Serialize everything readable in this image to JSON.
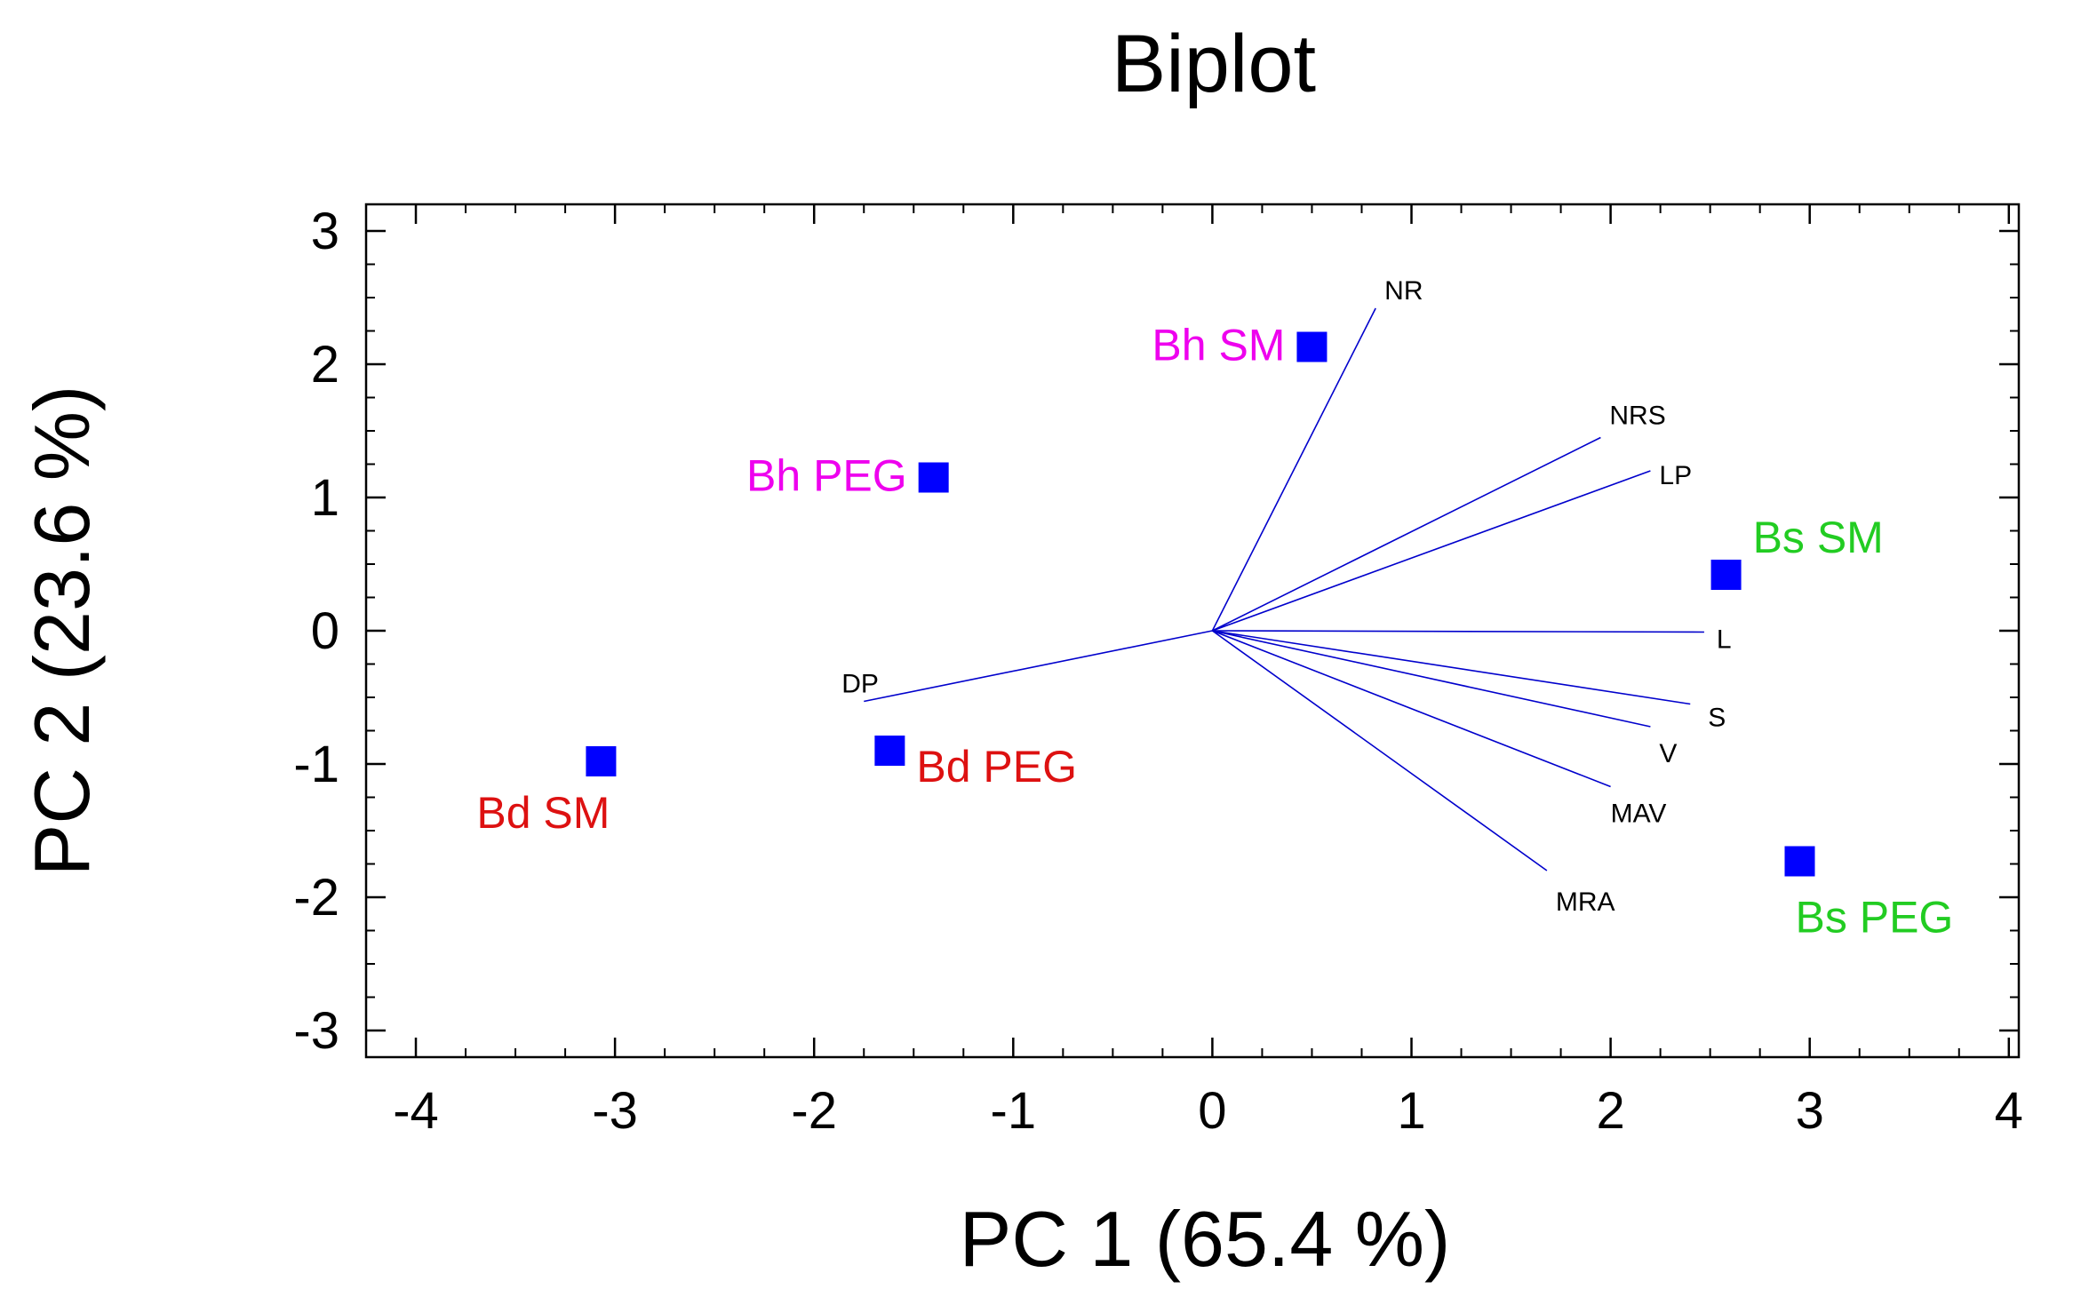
{
  "chart_data": {
    "type": "scatter",
    "title": "Biplot",
    "xlabel": "PC 1 (65.4 %)",
    "ylabel": "PC 2 (23.6 %)",
    "xlim": [
      -4.25,
      4.05
    ],
    "ylim": [
      -3.2,
      3.2
    ],
    "x_ticks": [
      -4,
      -3,
      -2,
      -1,
      0,
      1,
      2,
      3,
      4
    ],
    "y_ticks": [
      -3,
      -2,
      -1,
      0,
      1,
      2,
      3
    ],
    "grid": false,
    "marker_color": "#0000ff",
    "vector_color": "#0000cc",
    "points": [
      {
        "label": "Bh SM",
        "x": 0.5,
        "y": 2.13,
        "color": "#ee00ee"
      },
      {
        "label": "Bh PEG",
        "x": -1.4,
        "y": 1.15,
        "color": "#ee00ee"
      },
      {
        "label": "Bs SM",
        "x": 2.58,
        "y": 0.42,
        "color": "#22cc22"
      },
      {
        "label": "Bs PEG",
        "x": 2.95,
        "y": -1.73,
        "color": "#22cc22"
      },
      {
        "label": "Bd SM",
        "x": -3.07,
        "y": -0.98,
        "color": "#dd1111"
      },
      {
        "label": "Bd PEG",
        "x": -1.62,
        "y": -0.9,
        "color": "#dd1111"
      }
    ],
    "vectors": [
      {
        "label": "NR",
        "x": 0.82,
        "y": 2.42
      },
      {
        "label": "NRS",
        "x": 1.95,
        "y": 1.45
      },
      {
        "label": "LP",
        "x": 2.2,
        "y": 1.2
      },
      {
        "label": "L",
        "x": 2.47,
        "y": -0.01
      },
      {
        "label": "S",
        "x": 2.4,
        "y": -0.55
      },
      {
        "label": "V",
        "x": 2.2,
        "y": -0.72
      },
      {
        "label": "MAV",
        "x": 2.0,
        "y": -1.17
      },
      {
        "label": "MRA",
        "x": 1.68,
        "y": -1.8
      },
      {
        "label": "DP",
        "x": -1.75,
        "y": -0.53
      }
    ]
  }
}
